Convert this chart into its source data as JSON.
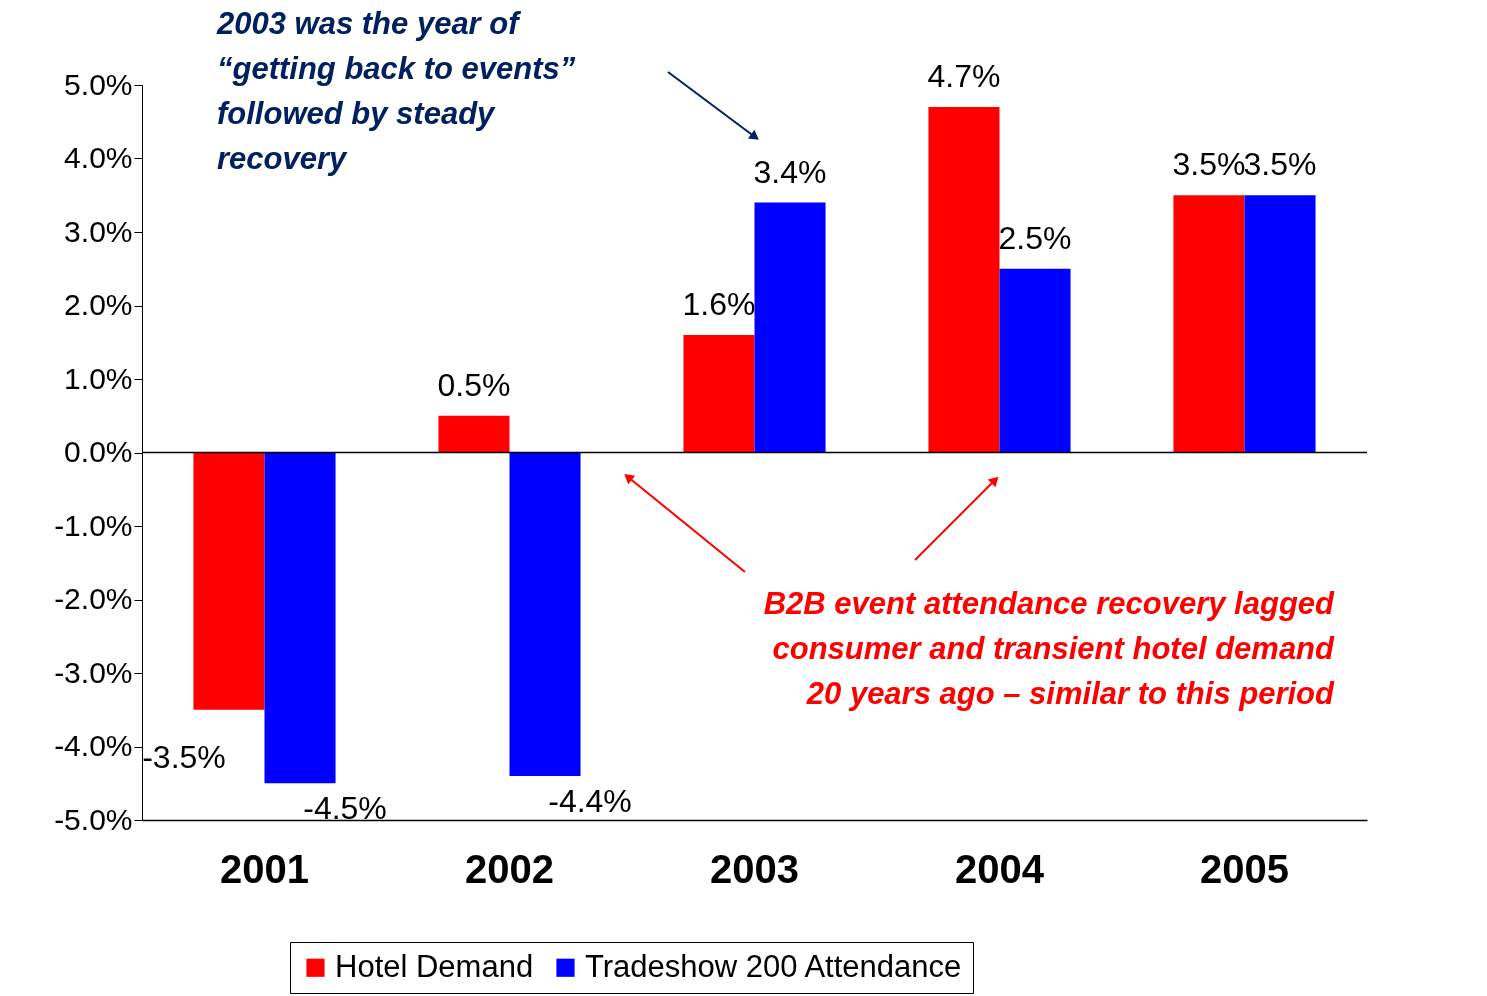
{
  "chart_data": {
    "type": "bar",
    "categories": [
      "2001",
      "2002",
      "2003",
      "2004",
      "2005"
    ],
    "series": [
      {
        "name": "Hotel Demand",
        "color": "#ff0000",
        "values": [
          -3.5,
          0.5,
          1.6,
          4.7,
          3.5
        ],
        "value_labels": [
          "-3.5%",
          "0.5%",
          "1.6%",
          "4.7%",
          "3.5%"
        ]
      },
      {
        "name": "Tradeshow 200 Attendance",
        "color": "#0000ff",
        "values": [
          -4.5,
          -4.4,
          3.4,
          2.5,
          3.5
        ],
        "value_labels": [
          "-4.5%",
          "-4.4%",
          "3.4%",
          "2.5%",
          "3.5%"
        ]
      }
    ],
    "ylim": [
      -5,
      5
    ],
    "yticks": [
      {
        "value": -5,
        "label": "-5.0%"
      },
      {
        "value": -4,
        "label": "-4.0%"
      },
      {
        "value": -3,
        "label": "-3.0%"
      },
      {
        "value": -2,
        "label": "-2.0%"
      },
      {
        "value": -1,
        "label": "-1.0%"
      },
      {
        "value": 0,
        "label": "0.0%"
      },
      {
        "value": 1,
        "label": "1.0%"
      },
      {
        "value": 2,
        "label": "2.0%"
      },
      {
        "value": 3,
        "label": "3.0%"
      },
      {
        "value": 4,
        "label": "4.0%"
      },
      {
        "value": 5,
        "label": "5.0%"
      }
    ],
    "annotations": [
      "2003 was the year of\n“getting back to events”\nfollowed by steady\nrecovery",
      "B2B event attendance recovery lagged\nconsumer and transient hotel demand\n20 years ago – similar to this period"
    ],
    "ref_lines": [
      {
        "axis": "y",
        "value": 0,
        "color": "#000000"
      }
    ],
    "legend": "bottom",
    "grid": false
  }
}
